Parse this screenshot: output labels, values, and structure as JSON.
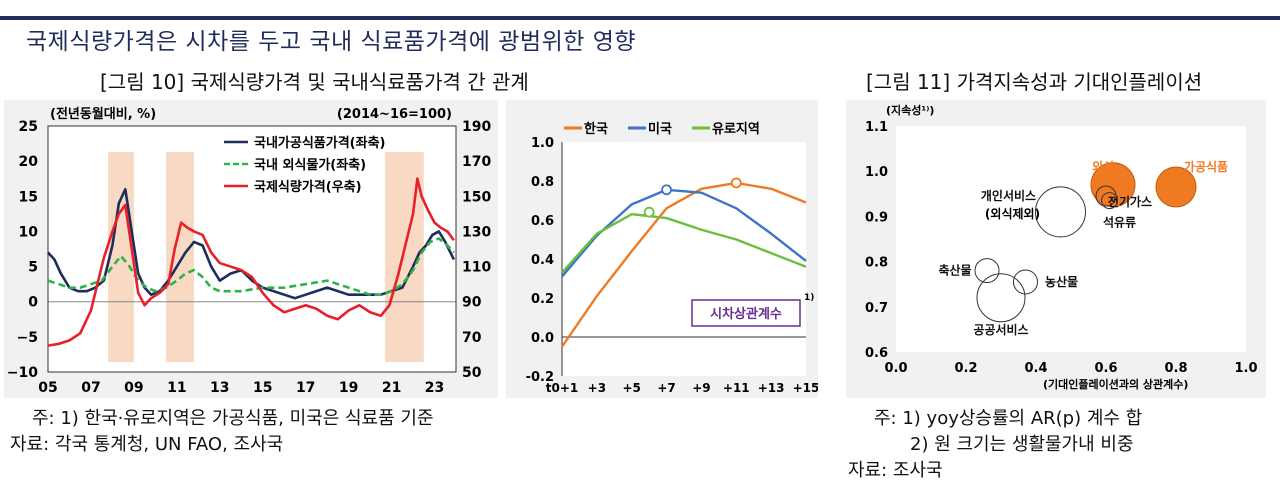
{
  "headline": "국제식량가격은 시차를 두고 국내 식료품가격에 광범위한 영향",
  "fig10_title": "[그림 10] 국제식량가격 및 국내식료품가격 간 관계",
  "fig11_title": "[그림 11] 가격지속성과 기대인플레이션",
  "colors": {
    "navy": "#1f2d5c",
    "green": "#2db34a",
    "red": "#e8202a",
    "orange": "#f07a22",
    "blue": "#3f73c8",
    "lgreen": "#6cbf3c",
    "shade": "#f8d9c4",
    "purple": "#6a2d91"
  },
  "chart_data": [
    {
      "type": "line",
      "ylabel_left": "(전년동월대비, %)",
      "ylabel_right": "(2014~16=100)",
      "x_ticks": [
        "05",
        "07",
        "09",
        "11",
        "13",
        "15",
        "17",
        "19",
        "21",
        "23"
      ],
      "xlim": [
        2005,
        2024
      ],
      "ylim_left": [
        -10,
        25
      ],
      "y_ticks_left": [
        "25",
        "20",
        "15",
        "10",
        "5",
        "0",
        "−5",
        "−10"
      ],
      "ylim_right": [
        50,
        190
      ],
      "y_ticks_right": [
        "190",
        "170",
        "150",
        "130",
        "110",
        "90",
        "70",
        "50"
      ],
      "shaded_periods": [
        [
          2007.8,
          2009.0
        ],
        [
          2010.5,
          2011.8
        ],
        [
          2020.7,
          2022.5
        ]
      ],
      "series": [
        {
          "name": "국내가공식품가격(좌축)",
          "axis": "left",
          "style": "solid",
          "color": "#1f2d5c",
          "x": [
            2005,
            2005.3,
            2005.6,
            2006,
            2006.4,
            2006.8,
            2007.2,
            2007.6,
            2008,
            2008.3,
            2008.6,
            2008.9,
            2009.2,
            2009.5,
            2009.8,
            2010.2,
            2010.6,
            2011,
            2011.4,
            2011.8,
            2012.2,
            2012.6,
            2013,
            2013.5,
            2014,
            2014.5,
            2015,
            2015.5,
            2016,
            2016.5,
            2017,
            2017.5,
            2018,
            2018.5,
            2019,
            2019.5,
            2020,
            2020.5,
            2021,
            2021.5,
            2022,
            2022.3,
            2022.6,
            2022.9,
            2023.2,
            2023.5,
            2023.9
          ],
          "y": [
            7,
            6,
            4,
            2,
            1.5,
            1.5,
            2,
            3,
            8,
            14,
            16,
            10,
            4,
            2,
            1,
            1.5,
            3,
            5,
            7,
            8.5,
            8,
            5,
            3,
            4,
            4.5,
            3,
            2,
            1.5,
            1,
            0.5,
            1,
            1.5,
            2,
            1.5,
            1,
            1,
            1,
            1,
            1.5,
            2,
            5,
            7,
            8,
            9.5,
            10,
            8.5,
            6
          ]
        },
        {
          "name": "국내 외식물가(좌축)",
          "axis": "left",
          "style": "dashed",
          "color": "#2db34a",
          "x": [
            2005,
            2005.5,
            2006,
            2006.5,
            2007,
            2007.5,
            2008,
            2008.4,
            2008.8,
            2009.2,
            2009.6,
            2010,
            2010.5,
            2011,
            2011.4,
            2011.8,
            2012.2,
            2012.6,
            2013,
            2014,
            2015,
            2016,
            2017,
            2018,
            2019,
            2020,
            2020.5,
            2021,
            2021.5,
            2022,
            2022.4,
            2022.8,
            2023.2,
            2023.6,
            2023.9
          ],
          "y": [
            3,
            2.5,
            2,
            2,
            2.5,
            3,
            5,
            6.5,
            5,
            3,
            2,
            1.5,
            2,
            3,
            4,
            4.5,
            3.5,
            2,
            1.5,
            1.5,
            2,
            2,
            2.5,
            3,
            2,
            1,
            1,
            1.5,
            2.5,
            4.5,
            7,
            8.5,
            9,
            8,
            7
          ]
        },
        {
          "name": "국제식량가격(우축)",
          "axis": "right",
          "style": "solid",
          "color": "#e8202a",
          "x": [
            2005,
            2005.5,
            2006,
            2006.5,
            2007,
            2007.3,
            2007.6,
            2008,
            2008.3,
            2008.6,
            2008.9,
            2009.2,
            2009.5,
            2009.8,
            2010.2,
            2010.6,
            2010.9,
            2011.2,
            2011.5,
            2011.8,
            2012.2,
            2012.6,
            2013,
            2013.5,
            2014,
            2014.5,
            2015,
            2015.5,
            2016,
            2016.5,
            2017,
            2017.5,
            2018,
            2018.5,
            2019,
            2019.5,
            2020,
            2020.5,
            2020.9,
            2021.3,
            2021.6,
            2022,
            2022.2,
            2022.4,
            2022.7,
            2023,
            2023.3,
            2023.6,
            2023.9
          ],
          "y": [
            65,
            66,
            68,
            72,
            85,
            100,
            115,
            130,
            140,
            145,
            120,
            95,
            88,
            92,
            95,
            100,
            120,
            135,
            132,
            130,
            128,
            118,
            112,
            110,
            108,
            104,
            95,
            88,
            84,
            86,
            88,
            86,
            82,
            80,
            85,
            88,
            84,
            82,
            88,
            105,
            120,
            140,
            160,
            150,
            142,
            135,
            132,
            130,
            125
          ]
        }
      ]
    },
    {
      "type": "line",
      "x_ticks": [
        "t0+1",
        "+3",
        "+5",
        "+7",
        "+9",
        "+11",
        "+13",
        "+15"
      ],
      "xlim": [
        1,
        15
      ],
      "ylim": [
        -0.2,
        1.0
      ],
      "y_ticks": [
        "1.0",
        "0.8",
        "0.6",
        "0.4",
        "0.2",
        "0.0",
        "-0.2"
      ],
      "annotation": "시차상관계수",
      "annotation_sup": "1)",
      "series": [
        {
          "name": "한국",
          "color": "#f07a22",
          "x": [
            1,
            3,
            5,
            7,
            9,
            11,
            13,
            15
          ],
          "y": [
            -0.05,
            0.21,
            0.44,
            0.66,
            0.76,
            0.79,
            0.76,
            0.69
          ],
          "peak": [
            11,
            0.79
          ]
        },
        {
          "name": "미국",
          "color": "#3f73c8",
          "x": [
            1,
            3,
            5,
            7,
            9,
            11,
            13,
            15
          ],
          "y": [
            0.31,
            0.52,
            0.68,
            0.755,
            0.74,
            0.66,
            0.53,
            0.39
          ],
          "peak": [
            7,
            0.755
          ]
        },
        {
          "name": "유로지역",
          "color": "#6cbf3c",
          "x": [
            1,
            3,
            5,
            7,
            9,
            11,
            13,
            15
          ],
          "y": [
            0.33,
            0.53,
            0.63,
            0.61,
            0.55,
            0.5,
            0.43,
            0.36
          ],
          "peak": [
            6,
            0.64
          ]
        }
      ]
    },
    {
      "type": "scatter",
      "ylabel": "(지속성¹⁾)",
      "xlabel": "(기대인플레이션과의 상관계수)",
      "xlim": [
        0.0,
        1.0
      ],
      "x_ticks": [
        "0.0",
        "0.2",
        "0.4",
        "0.6",
        "0.8",
        "1.0"
      ],
      "ylim": [
        0.6,
        1.1
      ],
      "y_ticks": [
        "1.1",
        "1.0",
        "0.9",
        "0.8",
        "0.7",
        "0.6"
      ],
      "points": [
        {
          "label": "외식",
          "x": 0.62,
          "y": 0.97,
          "size": 22,
          "highlight": true
        },
        {
          "label": "가공식품",
          "x": 0.8,
          "y": 0.965,
          "size": 20,
          "highlight": true
        },
        {
          "label": "전기가스",
          "x": 0.6,
          "y": 0.945,
          "size": 10,
          "highlight": false
        },
        {
          "label": "석유류",
          "x": 0.61,
          "y": 0.935,
          "size": 8,
          "highlight": false
        },
        {
          "label": "개인서비스",
          "label2": "(외식제외)",
          "x": 0.47,
          "y": 0.91,
          "size": 25,
          "highlight": false
        },
        {
          "label": "축산물",
          "x": 0.26,
          "y": 0.78,
          "size": 12,
          "highlight": false
        },
        {
          "label": "농산물",
          "x": 0.37,
          "y": 0.755,
          "size": 12,
          "highlight": false
        },
        {
          "label": "공공서비스",
          "x": 0.3,
          "y": 0.72,
          "size": 24,
          "highlight": false
        }
      ]
    }
  ],
  "notes_fig10": [
    "주: 1) 한국·유로지역은 가공식품, 미국은 식료품 기준",
    "자료: 각국 통계청, UN FAO, 조사국"
  ],
  "notes_fig11": [
    "주: 1) yoy상승률의 AR(p) 계수 합",
    "2) 원 크기는 생활물가내 비중",
    "자료: 조사국"
  ]
}
